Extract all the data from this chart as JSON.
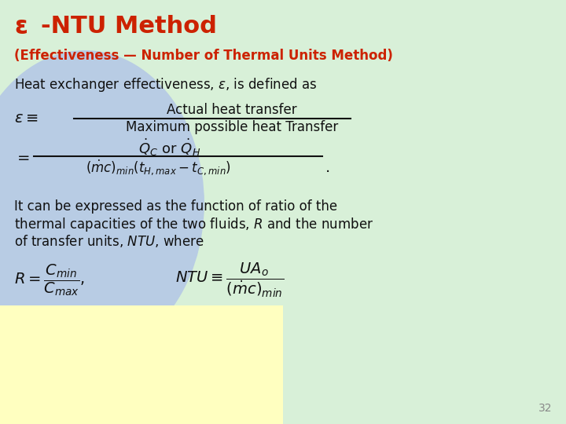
{
  "title_epsilon": "ε",
  "title_rest": "-NTU Method",
  "subtitle": "(Effectiveness — Number of Thermal Units Method)",
  "title_color": "#CC2200",
  "subtitle_color": "#CC2200",
  "text_color": "#111111",
  "bg_main": "#d8f0d8",
  "bg_blue": "#b8cce4",
  "bg_yellow": "#ffffc0",
  "page_number": "32",
  "figsize": [
    7.2,
    5.4
  ],
  "dpi": 100
}
